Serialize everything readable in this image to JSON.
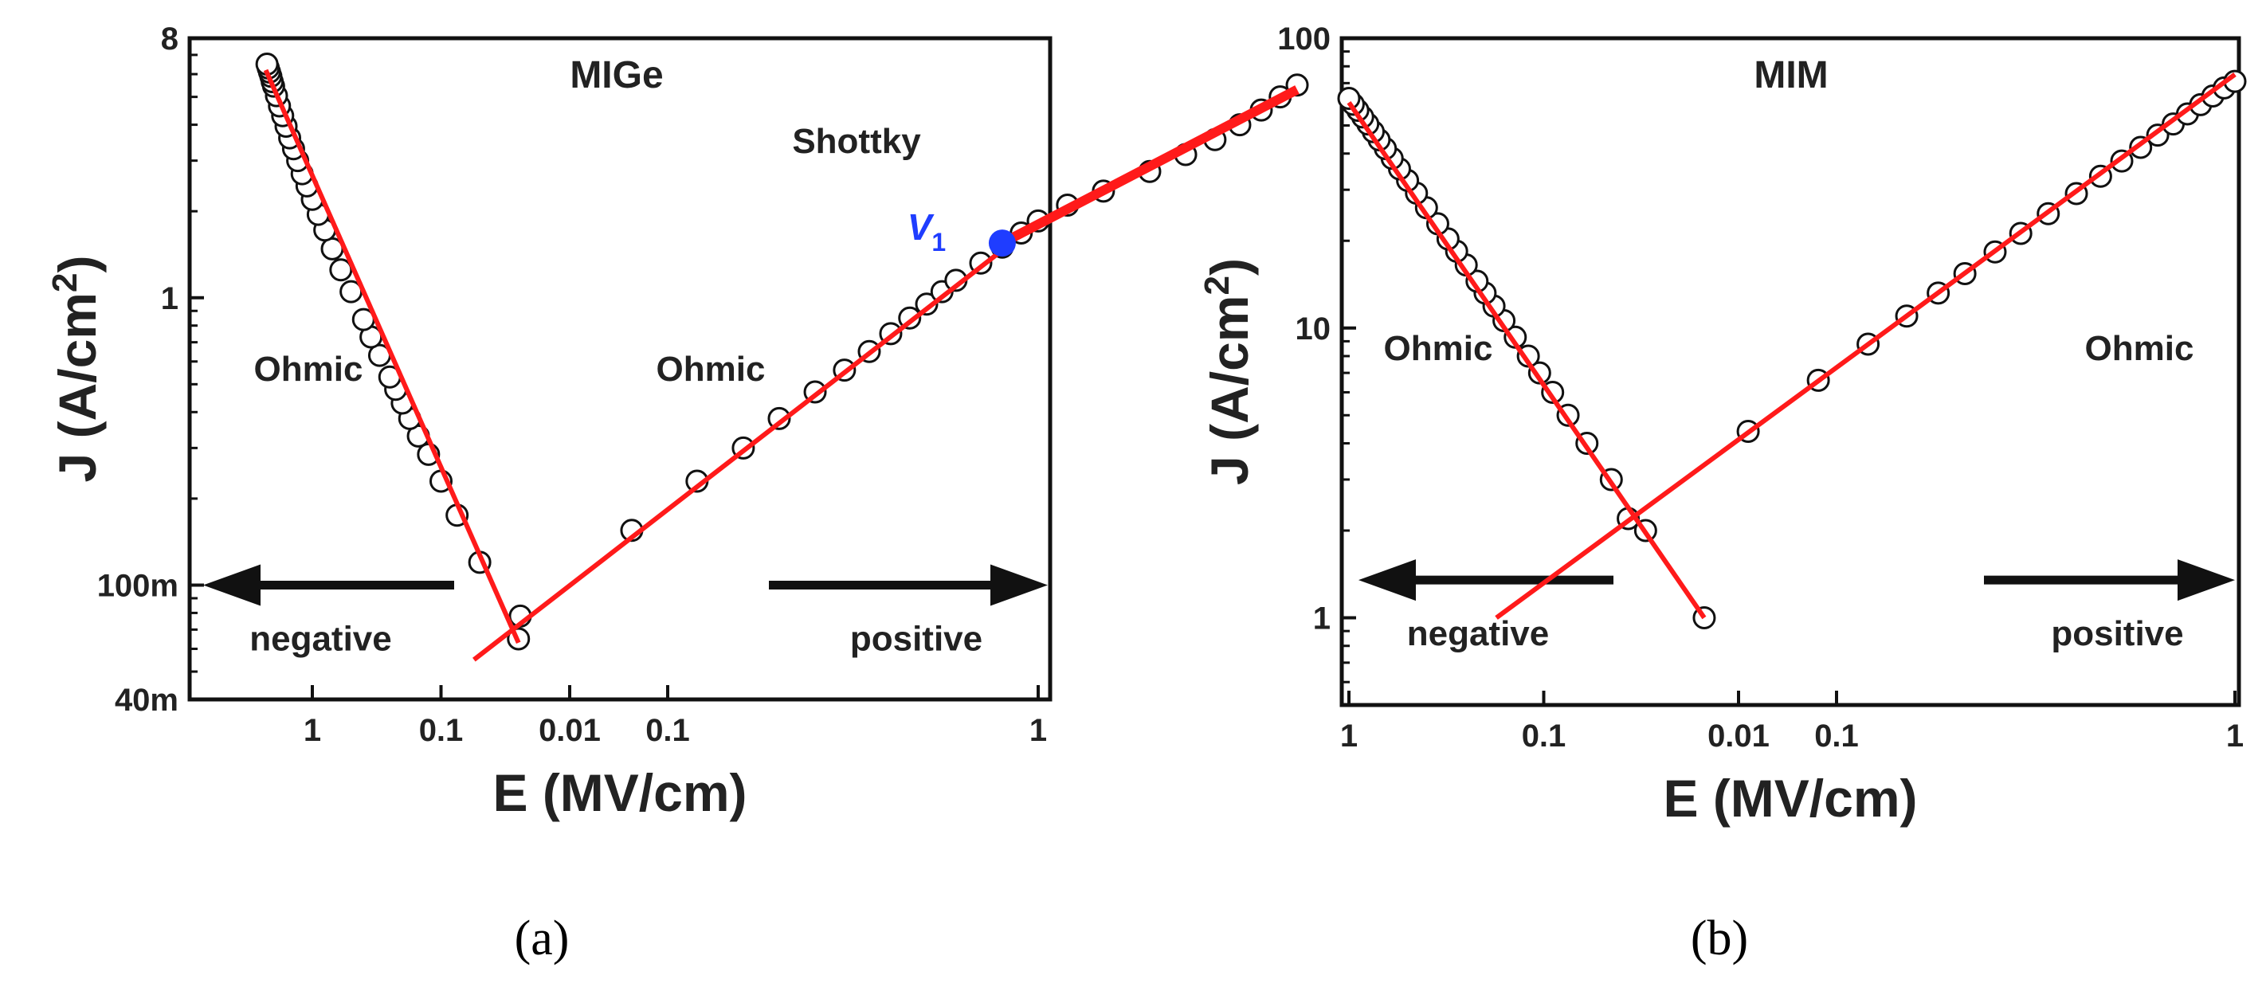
{
  "colors": {
    "fit_line": "#ff1a1a",
    "marker_edge": "#111111",
    "highlight_point": "#1f3dff",
    "axis": "#111111"
  },
  "chart_data": [
    {
      "panel": "a",
      "type": "scatter",
      "title": "MIGe",
      "caption": "(a)",
      "xlabel": "E (MV/cm)",
      "ylabel": "J (A/cm",
      "ylabel_sup": "2",
      "ylabel_tail": ")",
      "yscale": "log",
      "xscale": "log, mirrored about 0 (negative branch left, positive branch right)",
      "ylim": [
        0.04,
        8
      ],
      "yticks": [
        {
          "value": 8,
          "label": "8"
        },
        {
          "value": 1,
          "label": "1"
        },
        {
          "value": 0.1,
          "label": "100m"
        },
        {
          "value": 0.04,
          "label": "40m"
        }
      ],
      "neg_xlim": [
        0.001,
        3
      ],
      "pos_xlim": [
        0.001,
        6
      ],
      "xticks_neg": [
        {
          "value": 1,
          "label": "1"
        },
        {
          "value": 0.1,
          "label": "0.1"
        },
        {
          "value": 0.01,
          "label": "0.01"
        }
      ],
      "xticks_pos": [
        {
          "value": 0.1,
          "label": "0.1"
        },
        {
          "value": 1,
          "label": "1"
        }
      ],
      "annotations": {
        "neg_region": "Ohmic",
        "pos_region": "Ohmic",
        "high_field": "Shottky",
        "v_point": "V",
        "v_point_sub": "1"
      },
      "directions": {
        "left": "negative",
        "right": "positive"
      },
      "series": [
        {
          "branch": "negative",
          "points": [
            {
              "E": 0.025,
              "J": 0.065
            },
            {
              "E": 0.05,
              "J": 0.12
            },
            {
              "E": 0.075,
              "J": 0.175
            },
            {
              "E": 0.1,
              "J": 0.23
            },
            {
              "E": 0.125,
              "J": 0.285
            },
            {
              "E": 0.15,
              "J": 0.33
            },
            {
              "E": 0.175,
              "J": 0.38
            },
            {
              "E": 0.2,
              "J": 0.43
            },
            {
              "E": 0.225,
              "J": 0.48
            },
            {
              "E": 0.25,
              "J": 0.53
            },
            {
              "E": 0.3,
              "J": 0.63
            },
            {
              "E": 0.35,
              "J": 0.73
            },
            {
              "E": 0.4,
              "J": 0.84
            },
            {
              "E": 0.5,
              "J": 1.05
            },
            {
              "E": 0.6,
              "J": 1.25
            },
            {
              "E": 0.7,
              "J": 1.48
            },
            {
              "E": 0.8,
              "J": 1.72
            },
            {
              "E": 0.9,
              "J": 1.95
            },
            {
              "E": 1.0,
              "J": 2.2
            },
            {
              "E": 1.1,
              "J": 2.45
            },
            {
              "E": 1.2,
              "J": 2.7
            },
            {
              "E": 1.3,
              "J": 3.0
            },
            {
              "E": 1.4,
              "J": 3.3
            },
            {
              "E": 1.5,
              "J": 3.6
            },
            {
              "E": 1.6,
              "J": 3.95
            },
            {
              "E": 1.7,
              "J": 4.3
            },
            {
              "E": 1.8,
              "J": 4.65
            },
            {
              "E": 1.9,
              "J": 5.05
            },
            {
              "E": 2.0,
              "J": 5.45
            },
            {
              "E": 2.05,
              "J": 5.65
            },
            {
              "E": 2.1,
              "J": 5.9
            },
            {
              "E": 2.15,
              "J": 6.1
            },
            {
              "E": 2.2,
              "J": 6.3
            },
            {
              "E": 2.25,
              "J": 6.5
            }
          ],
          "fit": [
            {
              "E": 0.025,
              "J": 0.063
            },
            {
              "E": 2.3,
              "J": 6.2
            }
          ]
        },
        {
          "branch": "positive",
          "points": [
            {
              "E": 0.04,
              "J": 0.078
            },
            {
              "E": 0.08,
              "J": 0.155
            },
            {
              "E": 0.12,
              "J": 0.23
            },
            {
              "E": 0.16,
              "J": 0.3
            },
            {
              "E": 0.2,
              "J": 0.38
            },
            {
              "E": 0.25,
              "J": 0.47
            },
            {
              "E": 0.3,
              "J": 0.56
            },
            {
              "E": 0.35,
              "J": 0.65
            },
            {
              "E": 0.4,
              "J": 0.75
            },
            {
              "E": 0.45,
              "J": 0.85
            },
            {
              "E": 0.5,
              "J": 0.95
            },
            {
              "E": 0.55,
              "J": 1.05
            },
            {
              "E": 0.6,
              "J": 1.15
            },
            {
              "E": 0.7,
              "J": 1.32
            },
            {
              "E": 0.8,
              "J": 1.5
            },
            {
              "E": 0.9,
              "J": 1.68
            },
            {
              "E": 1.0,
              "J": 1.85
            },
            {
              "E": 1.2,
              "J": 2.1
            },
            {
              "E": 1.5,
              "J": 2.35
            },
            {
              "E": 2.0,
              "J": 2.75
            },
            {
              "E": 2.5,
              "J": 3.15
            },
            {
              "E": 3.0,
              "J": 3.55
            },
            {
              "E": 3.5,
              "J": 4.0
            },
            {
              "E": 4.0,
              "J": 4.5
            },
            {
              "E": 4.5,
              "J": 5.0
            },
            {
              "E": 5.0,
              "J": 5.5
            }
          ],
          "fit_ohmic": [
            {
              "E": 0.03,
              "J": 0.055
            },
            {
              "E": 0.82,
              "J": 1.5
            }
          ],
          "fit_shottky": [
            {
              "E": 0.8,
              "J": 1.55
            },
            {
              "E": 5.0,
              "J": 5.3
            }
          ],
          "highlight": {
            "E": 0.8,
            "J": 1.55
          }
        }
      ]
    },
    {
      "panel": "b",
      "type": "scatter",
      "title": "MIM",
      "caption": "(b)",
      "xlabel": "E (MV/cm)",
      "ylabel": "J (A/cm",
      "ylabel_sup": "2",
      "ylabel_tail": ")",
      "yscale": "log",
      "xscale": "log, mirrored about 0 (negative branch left, positive branch right)",
      "ylim": [
        0.5,
        100
      ],
      "yticks": [
        {
          "value": 100,
          "label": "100"
        },
        {
          "value": 10,
          "label": "10"
        },
        {
          "value": 1,
          "label": "1"
        }
      ],
      "neg_xlim": [
        0.001,
        1
      ],
      "pos_xlim": [
        0.001,
        1
      ],
      "xticks_neg": [
        {
          "value": 1,
          "label": "1"
        },
        {
          "value": 0.1,
          "label": "0.1"
        },
        {
          "value": 0.01,
          "label": "0.01"
        }
      ],
      "xticks_pos": [
        {
          "value": 0.1,
          "label": "0.1"
        },
        {
          "value": 1,
          "label": "1"
        }
      ],
      "annotations": {
        "neg_region": "Ohmic",
        "pos_region": "Ohmic"
      },
      "directions": {
        "left": "negative",
        "right": "positive"
      },
      "series": [
        {
          "branch": "negative",
          "points": [
            {
              "E": 0.015,
              "J": 1.0
            },
            {
              "E": 0.03,
              "J": 2.0
            },
            {
              "E": 0.045,
              "J": 3.0
            },
            {
              "E": 0.06,
              "J": 4.0
            },
            {
              "E": 0.075,
              "J": 5.0
            },
            {
              "E": 0.09,
              "J": 6.0
            },
            {
              "E": 0.105,
              "J": 7.0
            },
            {
              "E": 0.12,
              "J": 8.0
            },
            {
              "E": 0.14,
              "J": 9.3
            },
            {
              "E": 0.16,
              "J": 10.6
            },
            {
              "E": 0.18,
              "J": 11.9
            },
            {
              "E": 0.2,
              "J": 13.2
            },
            {
              "E": 0.22,
              "J": 14.5
            },
            {
              "E": 0.25,
              "J": 16.5
            },
            {
              "E": 0.28,
              "J": 18.4
            },
            {
              "E": 0.31,
              "J": 20.3
            },
            {
              "E": 0.35,
              "J": 22.9
            },
            {
              "E": 0.4,
              "J": 26.0
            },
            {
              "E": 0.45,
              "J": 29.2
            },
            {
              "E": 0.5,
              "J": 32.3
            },
            {
              "E": 0.55,
              "J": 35.4
            },
            {
              "E": 0.6,
              "J": 38.5
            },
            {
              "E": 0.65,
              "J": 41.6
            },
            {
              "E": 0.7,
              "J": 44.6
            },
            {
              "E": 0.75,
              "J": 47.6
            },
            {
              "E": 0.8,
              "J": 50.6
            },
            {
              "E": 0.85,
              "J": 53.5
            },
            {
              "E": 0.9,
              "J": 56.4
            },
            {
              "E": 0.95,
              "J": 59.2
            },
            {
              "E": 1.0,
              "J": 62.0
            }
          ],
          "fit": [
            {
              "E": 0.015,
              "J": 1.0
            },
            {
              "E": 1.0,
              "J": 60.0
            }
          ]
        },
        {
          "branch": "positive",
          "points": [
            {
              "E": 0.03,
              "J": 2.2
            },
            {
              "E": 0.06,
              "J": 4.4
            },
            {
              "E": 0.09,
              "J": 6.6
            },
            {
              "E": 0.12,
              "J": 8.8
            },
            {
              "E": 0.15,
              "J": 11.0
            },
            {
              "E": 0.18,
              "J": 13.2
            },
            {
              "E": 0.21,
              "J": 15.4
            },
            {
              "E": 0.25,
              "J": 18.3
            },
            {
              "E": 0.29,
              "J": 21.2
            },
            {
              "E": 0.34,
              "J": 24.8
            },
            {
              "E": 0.4,
              "J": 29.1
            },
            {
              "E": 0.46,
              "J": 33.4
            },
            {
              "E": 0.52,
              "J": 37.7
            },
            {
              "E": 0.58,
              "J": 42.0
            },
            {
              "E": 0.64,
              "J": 46.3
            },
            {
              "E": 0.7,
              "J": 50.6
            },
            {
              "E": 0.76,
              "J": 54.8
            },
            {
              "E": 0.82,
              "J": 59.0
            },
            {
              "E": 0.88,
              "J": 63.2
            },
            {
              "E": 0.94,
              "J": 67.4
            },
            {
              "E": 1.0,
              "J": 71.0
            }
          ],
          "fit": [
            {
              "E": 0.014,
              "J": 1.0
            },
            {
              "E": 1.0,
              "J": 75.0
            }
          ]
        }
      ]
    }
  ]
}
